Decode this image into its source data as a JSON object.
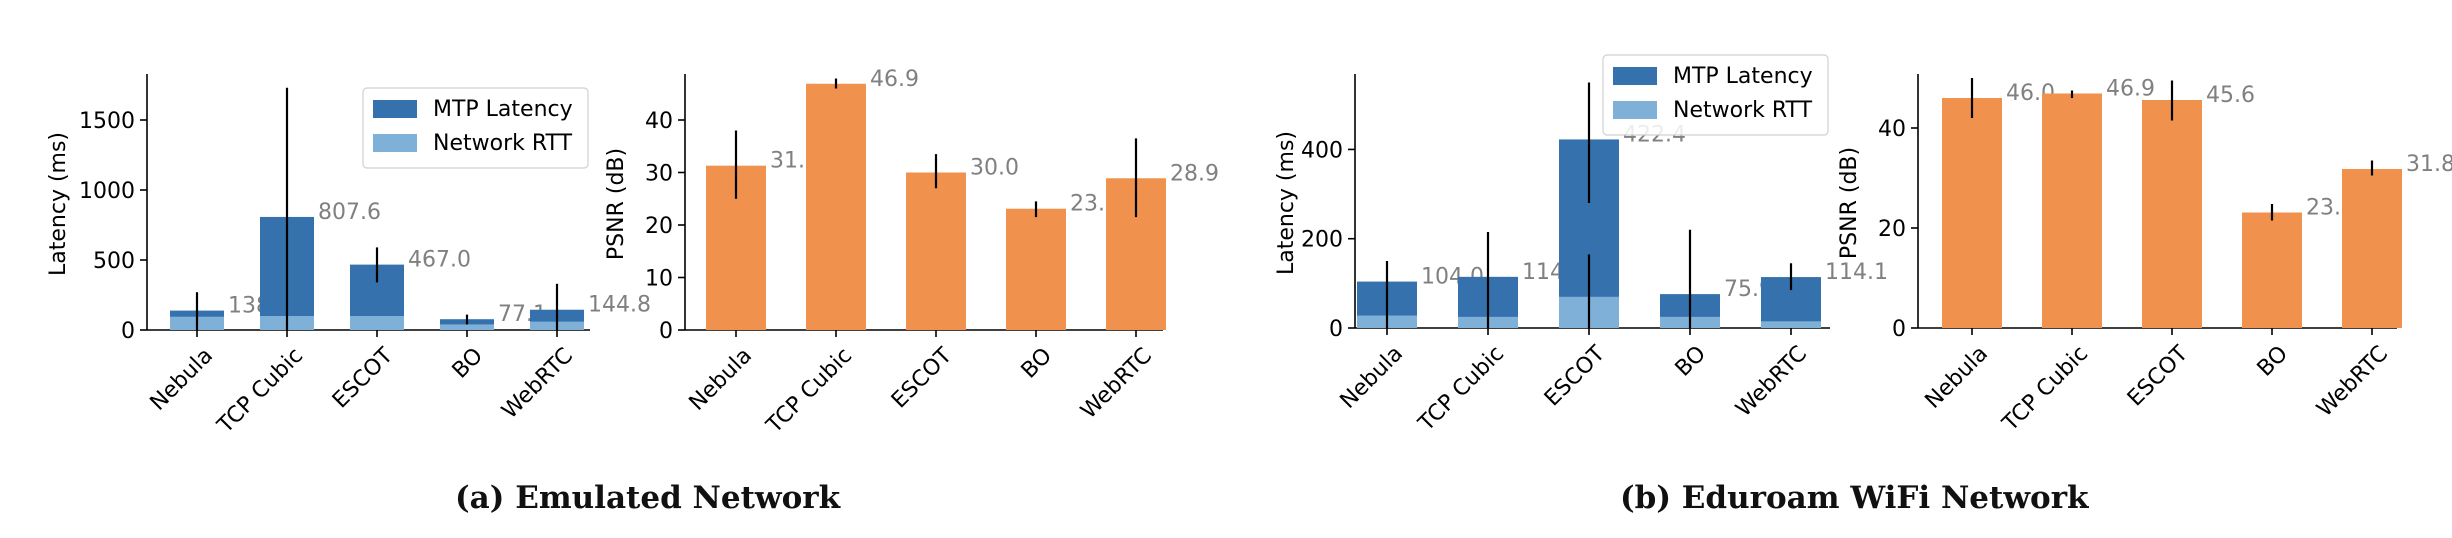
{
  "captions": {
    "a": "(a) Emulated Network",
    "b": "(b) Eduroam WiFi Network"
  },
  "colors": {
    "mtp": "#3471ad",
    "rtt": "#7eb0d8",
    "psnr": "#f0914e",
    "value_label": "#808080",
    "axis": "#000000"
  },
  "chart_data": [
    {
      "id": "emulated-latency",
      "type": "bar",
      "categories": [
        "Nebula",
        "TCP Cubic",
        "ESCOT",
        "BO",
        "WebRTC"
      ],
      "ylabel": "Latency (ms)",
      "ylim": [
        0,
        1800
      ],
      "yticks": [
        0,
        500,
        1000,
        1500
      ],
      "series": [
        {
          "name": "MTP Latency",
          "values": [
            138.6,
            807.6,
            467.0,
            77.1,
            144.8
          ],
          "err_low": [
            0,
            0,
            340,
            40,
            0
          ],
          "err_high": [
            270,
            1730,
            590,
            110,
            330
          ]
        },
        {
          "name": "Network RTT",
          "values": [
            95,
            100,
            100,
            40,
            60
          ],
          "err_low": [
            0,
            0,
            0,
            0,
            0
          ],
          "err_high": [
            0,
            0,
            0,
            0,
            0
          ]
        }
      ],
      "value_labels": [
        "138.6",
        "807.6",
        "467.0",
        "77.1",
        "144.8"
      ],
      "legend": "top-right",
      "grid": false
    },
    {
      "id": "emulated-psnr",
      "type": "bar",
      "categories": [
        "Nebula",
        "TCP Cubic",
        "ESCOT",
        "BO",
        "WebRTC"
      ],
      "ylabel": "PSNR (dB)",
      "ylim": [
        0,
        48
      ],
      "yticks": [
        0,
        10,
        20,
        30,
        40
      ],
      "series": [
        {
          "name": "PSNR",
          "values": [
            31.3,
            46.9,
            30.0,
            23.1,
            28.9
          ],
          "err_low": [
            25,
            46,
            27,
            21.5,
            21.5
          ],
          "err_high": [
            38,
            47.9,
            33.5,
            24.5,
            36.5
          ]
        }
      ],
      "value_labels": [
        "31.3",
        "46.9",
        "30.0",
        "23.1",
        "28.9"
      ],
      "legend": "none",
      "grid": false
    },
    {
      "id": "eduroam-latency",
      "type": "bar",
      "categories": [
        "Nebula",
        "TCP Cubic",
        "ESCOT",
        "BO",
        "WebRTC"
      ],
      "ylabel": "Latency (ms)",
      "ylim": [
        0,
        560
      ],
      "yticks": [
        0,
        200,
        400
      ],
      "series": [
        {
          "name": "MTP Latency",
          "values": [
            104.0,
            114.6,
            422.4,
            75.9,
            114.1
          ],
          "err_low": [
            0,
            0,
            280,
            0,
            85
          ],
          "err_high": [
            150,
            215,
            550,
            220,
            145
          ]
        },
        {
          "name": "Network RTT",
          "values": [
            28,
            25,
            70,
            25,
            15
          ],
          "err_low": [
            0,
            0,
            0,
            0,
            0
          ],
          "err_high": [
            0,
            0,
            165,
            0,
            0
          ]
        }
      ],
      "value_labels": [
        "104.0",
        "114.6",
        "422.4",
        "75.9",
        "114.1"
      ],
      "legend": "top-right",
      "grid": false
    },
    {
      "id": "eduroam-psnr",
      "type": "bar",
      "categories": [
        "Nebula",
        "TCP Cubic",
        "ESCOT",
        "BO",
        "WebRTC"
      ],
      "ylabel": "PSNR (dB)",
      "ylim": [
        0,
        50
      ],
      "yticks": [
        0,
        20,
        40
      ],
      "series": [
        {
          "name": "PSNR",
          "values": [
            46.0,
            46.9,
            45.6,
            23.1,
            31.8
          ],
          "err_low": [
            42,
            46,
            41.5,
            21.5,
            30.5
          ],
          "err_high": [
            50,
            47.5,
            49.5,
            24.8,
            33.5
          ]
        }
      ],
      "value_labels": [
        "46.0",
        "46.9",
        "45.6",
        "23.1",
        "31.8"
      ],
      "legend": "none",
      "grid": false
    }
  ]
}
